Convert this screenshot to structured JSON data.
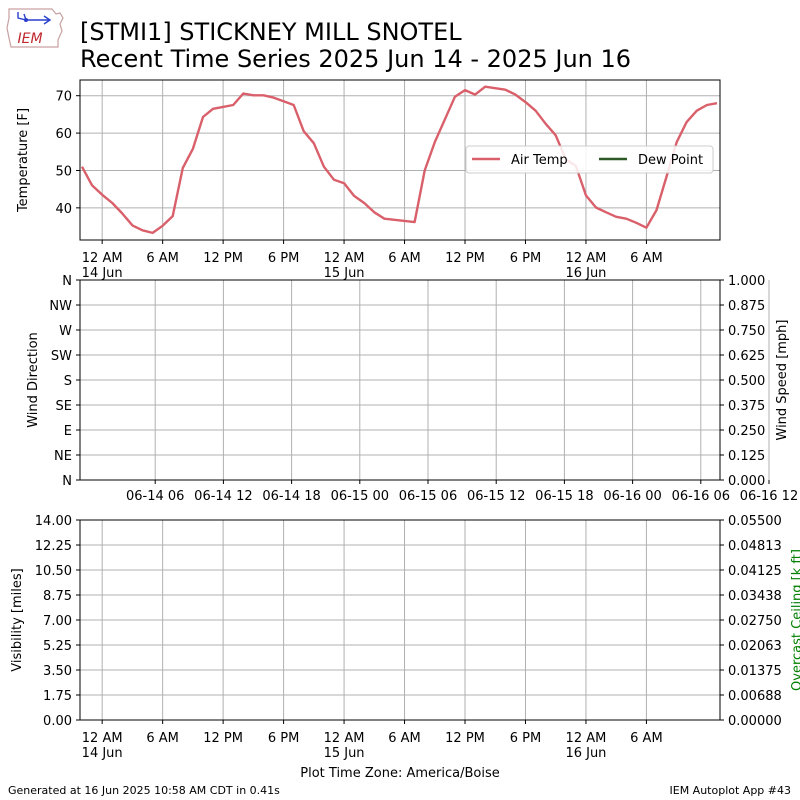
{
  "title_line1": "[STMI1] STICKNEY MILL SNOTEL",
  "title_line2": "Recent Time Series 2025 Jun 14 - 2025 Jun 16",
  "logo": {
    "text": "IEM"
  },
  "footer": {
    "left": "Generated at 16 Jun 2025 10:58 AM CDT in 0.41s",
    "right": "IEM Autoplot App #43",
    "xlabel": "Plot Time Zone: America/Boise"
  },
  "colors": {
    "air_temp": "#d9606b",
    "dew_point": "#2d5a27",
    "ceiling_label": "#008000",
    "grid": "#b0b0b0"
  },
  "chart_data": [
    {
      "type": "line",
      "ylabel": "Temperature [F]",
      "x_unit": "hours since 2025-06-14 00:00 America/Boise",
      "xlim": [
        -2.2,
        61.3
      ],
      "ylim": [
        31.4,
        74.2
      ],
      "yticks": [
        40,
        50,
        60,
        70
      ],
      "xticks": [
        {
          "x": 0,
          "line1": "12 AM",
          "line2": "14 Jun"
        },
        {
          "x": 6,
          "line1": "6 AM",
          "line2": ""
        },
        {
          "x": 12,
          "line1": "12 PM",
          "line2": ""
        },
        {
          "x": 18,
          "line1": "6 PM",
          "line2": ""
        },
        {
          "x": 24,
          "line1": "12 AM",
          "line2": "15 Jun"
        },
        {
          "x": 30,
          "line1": "6 AM",
          "line2": ""
        },
        {
          "x": 36,
          "line1": "12 PM",
          "line2": ""
        },
        {
          "x": 42,
          "line1": "6 PM",
          "line2": ""
        },
        {
          "x": 48,
          "line1": "12 AM",
          "line2": "16 Jun"
        },
        {
          "x": 54,
          "line1": "6 AM",
          "line2": ""
        }
      ],
      "grid": true,
      "legend_position": "center-right",
      "series": [
        {
          "name": "Air Temp",
          "x": [
            -2.0,
            -1.0,
            0.0,
            1.0,
            2.0,
            3.0,
            4.0,
            5.0,
            6.0,
            7.0,
            8.0,
            9.0,
            10.0,
            11.0,
            12.0,
            13.0,
            14.0,
            15.0,
            16.0,
            17.0,
            18.0,
            19.0,
            20.0,
            21.0,
            22.0,
            23.0,
            24.0,
            25.0,
            26.0,
            27.0,
            28.0,
            29.0,
            30.0,
            31.0,
            32.0,
            33.0,
            34.0,
            35.0,
            36.0,
            37.0,
            38.0,
            39.0,
            40.0,
            41.0,
            42.0,
            43.0,
            44.0,
            45.0,
            46.0,
            47.0,
            48.0,
            49.0,
            50.0,
            51.0,
            52.0,
            53.0,
            54.0,
            55.0,
            56.0,
            57.0,
            58.0,
            59.0,
            60.0,
            61.0
          ],
          "y": [
            51.0,
            46.0,
            43.5,
            41.3,
            38.5,
            35.3,
            34.0,
            33.3,
            35.2,
            37.8,
            50.7,
            55.8,
            64.3,
            66.5,
            67.0,
            67.5,
            70.6,
            70.1,
            70.1,
            69.5,
            68.5,
            67.5,
            60.5,
            57.3,
            51.0,
            47.5,
            46.6,
            43.2,
            41.3,
            38.8,
            37.1,
            36.8,
            36.5,
            36.2,
            50.0,
            57.6,
            63.7,
            69.7,
            71.5,
            70.3,
            72.4,
            72.0,
            71.6,
            70.3,
            68.3,
            66.0,
            62.5,
            59.4,
            53.0,
            51.2,
            43.3,
            40.1,
            38.8,
            37.6,
            37.1,
            36.0,
            34.7,
            39.4,
            48.4,
            57.6,
            63.0,
            66.0,
            67.5,
            68.0
          ]
        },
        {
          "name": "Dew Point",
          "x": [],
          "y": []
        }
      ]
    },
    {
      "type": "scatter",
      "ylabel": "Wind Direction",
      "y2label": "Wind Speed [mph]",
      "yticks": [
        "N",
        "NE",
        "E",
        "SE",
        "S",
        "SW",
        "W",
        "NW",
        "N"
      ],
      "y2ticks": [
        "0.000",
        "0.125",
        "0.250",
        "0.375",
        "0.500",
        "0.625",
        "0.750",
        "0.875",
        "1.000"
      ],
      "xticks": [
        "06-14 06",
        "06-14 12",
        "06-14 18",
        "06-15 00",
        "06-15 06",
        "06-15 12",
        "06-15 18",
        "06-16 00",
        "06-16 06",
        "06-16 12"
      ],
      "grid": true,
      "series": []
    },
    {
      "type": "line",
      "ylabel": "Visibility [miles]",
      "y2label": "Overcast Ceiling [k ft]",
      "yticks": [
        "0.00",
        "1.75",
        "3.50",
        "5.25",
        "7.00",
        "8.75",
        "10.50",
        "12.25",
        "14.00"
      ],
      "y2ticks": [
        "0.00000",
        "0.00688",
        "0.01375",
        "0.02063",
        "0.02750",
        "0.03438",
        "0.04125",
        "0.04813",
        "0.05500"
      ],
      "xticks": [
        {
          "line1": "12 AM",
          "line2": "14 Jun"
        },
        {
          "line1": "6 AM",
          "line2": ""
        },
        {
          "line1": "12 PM",
          "line2": ""
        },
        {
          "line1": "6 PM",
          "line2": ""
        },
        {
          "line1": "12 AM",
          "line2": "15 Jun"
        },
        {
          "line1": "6 AM",
          "line2": ""
        },
        {
          "line1": "12 PM",
          "line2": ""
        },
        {
          "line1": "6 PM",
          "line2": ""
        },
        {
          "line1": "12 AM",
          "line2": "16 Jun"
        },
        {
          "line1": "6 AM",
          "line2": ""
        }
      ],
      "grid": true,
      "series": []
    }
  ]
}
